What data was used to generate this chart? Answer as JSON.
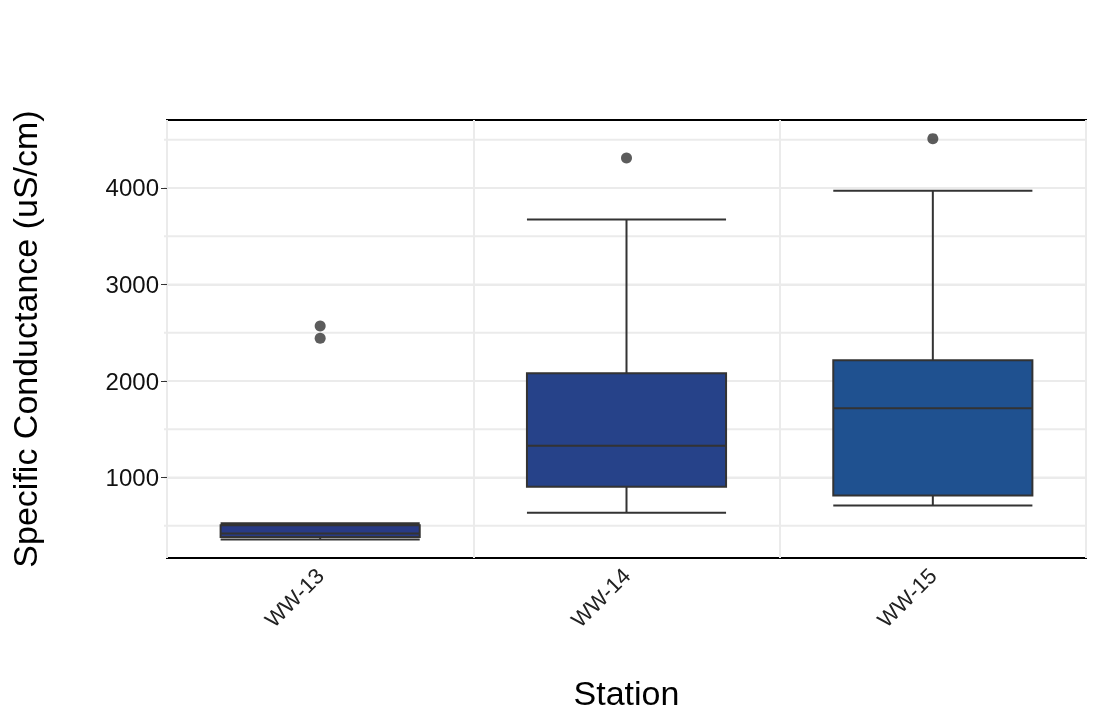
{
  "chart_data": {
    "type": "box",
    "xlabel": "Station",
    "ylabel": "Specific Conductance (uS/cm)",
    "categories": [
      "WW-13",
      "WW-14",
      "WW-15"
    ],
    "colors": [
      "#283a85",
      "#264289",
      "#1f5190"
    ],
    "boxes": [
      {
        "low": 359,
        "q1": 385,
        "median": 422,
        "q3": 507,
        "high": 526,
        "outliers": [
          2444,
          2570
        ]
      },
      {
        "low": 637,
        "q1": 904,
        "median": 1330,
        "q3": 2081,
        "high": 3674,
        "outliers": [
          4311
        ]
      },
      {
        "low": 711,
        "q1": 815,
        "median": 1719,
        "q3": 2215,
        "high": 3970,
        "outliers": [
          4511
        ]
      }
    ],
    "ylim": [
      167,
      4704
    ],
    "yticks": [
      {
        "value": 500,
        "label": null
      },
      1000,
      {
        "value": 1500,
        "label": null
      },
      2000,
      {
        "value": 2500,
        "label": null
      },
      3000,
      {
        "value": 3500,
        "label": null
      },
      4000,
      {
        "value": 4500,
        "label": null
      }
    ],
    "grid": true
  }
}
